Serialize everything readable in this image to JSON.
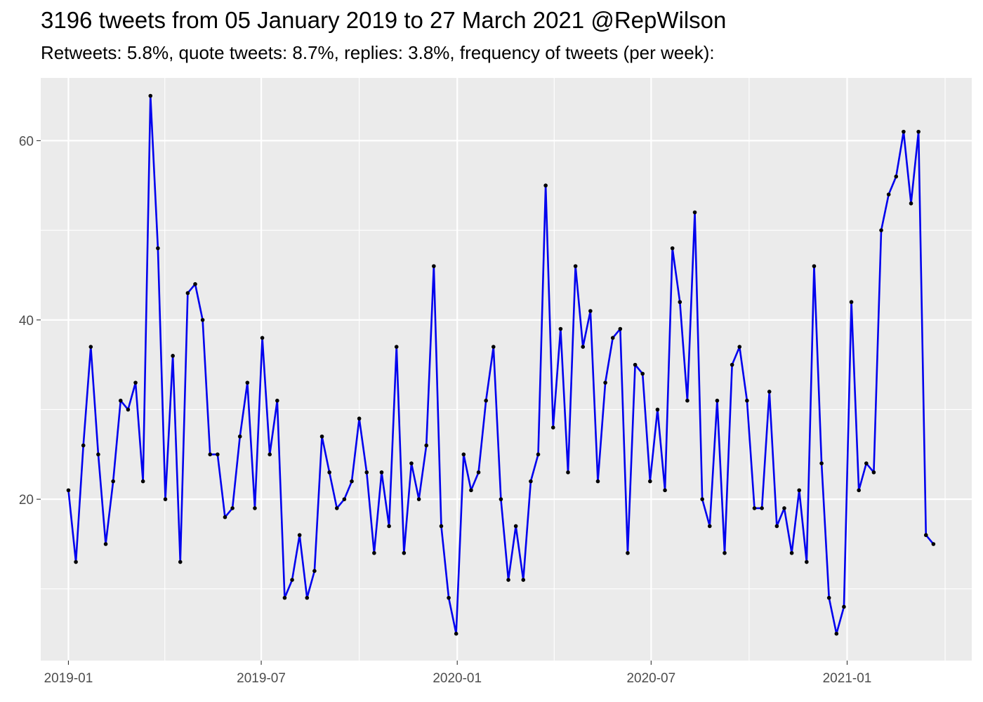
{
  "chart_data": {
    "type": "line",
    "title": "3196 tweets from 05 January 2019 to 27 March 2021 @RepWilson",
    "subtitle": "Retweets: 5.8%, quote tweets: 8.7%, replies: 3.8%, frequency of tweets (per week):",
    "xlabel": "",
    "ylabel": "",
    "x_ticks": [
      {
        "label": "2019-01",
        "date": "2019-01-01"
      },
      {
        "label": "2019-07",
        "date": "2019-07-01"
      },
      {
        "label": "2020-01",
        "date": "2020-01-01"
      },
      {
        "label": "2020-07",
        "date": "2020-07-01"
      },
      {
        "label": "2021-01",
        "date": "2021-01-01"
      }
    ],
    "y_ticks": [
      20,
      40,
      60
    ],
    "xlim": [
      "2018-12-06",
      "2021-04-28"
    ],
    "ylim": [
      2,
      67
    ],
    "grid": true,
    "line_color": "#0000ee",
    "point_color": "#000000",
    "panel_color": "#ebebeb",
    "series": [
      {
        "x": [
          "2019-01-01",
          "2019-01-08",
          "2019-01-15",
          "2019-01-22",
          "2019-01-29",
          "2019-02-05",
          "2019-02-12",
          "2019-02-19",
          "2019-02-26",
          "2019-03-05",
          "2019-03-12",
          "2019-03-19",
          "2019-03-26",
          "2019-04-02",
          "2019-04-09",
          "2019-04-16",
          "2019-04-23",
          "2019-04-30",
          "2019-05-07",
          "2019-05-14",
          "2019-05-21",
          "2019-05-28",
          "2019-06-04",
          "2019-06-11",
          "2019-06-18",
          "2019-06-25",
          "2019-07-02",
          "2019-07-09",
          "2019-07-16",
          "2019-07-23",
          "2019-07-30",
          "2019-08-06",
          "2019-08-13",
          "2019-08-20",
          "2019-08-27",
          "2019-09-03",
          "2019-09-10",
          "2019-09-17",
          "2019-09-24",
          "2019-10-01",
          "2019-10-08",
          "2019-10-15",
          "2019-10-22",
          "2019-10-29",
          "2019-11-05",
          "2019-11-12",
          "2019-11-19",
          "2019-11-26",
          "2019-12-03",
          "2019-12-10",
          "2019-12-17",
          "2019-12-24",
          "2019-12-31",
          "2020-01-07",
          "2020-01-14",
          "2020-01-21",
          "2020-01-28",
          "2020-02-04",
          "2020-02-11",
          "2020-02-18",
          "2020-02-25",
          "2020-03-03",
          "2020-03-10",
          "2020-03-17",
          "2020-03-24",
          "2020-03-31",
          "2020-04-07",
          "2020-04-14",
          "2020-04-21",
          "2020-04-28",
          "2020-05-05",
          "2020-05-12",
          "2020-05-19",
          "2020-05-26",
          "2020-06-02",
          "2020-06-09",
          "2020-06-16",
          "2020-06-23",
          "2020-06-30",
          "2020-07-07",
          "2020-07-14",
          "2020-07-21",
          "2020-07-28",
          "2020-08-04",
          "2020-08-11",
          "2020-08-18",
          "2020-08-25",
          "2020-09-01",
          "2020-09-08",
          "2020-09-15",
          "2020-09-22",
          "2020-09-29",
          "2020-10-06",
          "2020-10-13",
          "2020-10-20",
          "2020-10-27",
          "2020-11-03",
          "2020-11-10",
          "2020-11-17",
          "2020-11-24",
          "2020-12-01",
          "2020-12-08",
          "2020-12-15",
          "2020-12-22",
          "2020-12-29",
          "2021-01-05",
          "2021-01-12",
          "2021-01-19",
          "2021-01-26",
          "2021-02-02",
          "2021-02-09",
          "2021-02-16",
          "2021-02-23",
          "2021-03-02",
          "2021-03-09",
          "2021-03-16",
          "2021-03-23"
        ],
        "y": [
          21,
          13,
          26,
          37,
          25,
          15,
          22,
          31,
          30,
          33,
          22,
          65,
          48,
          20,
          36,
          13,
          43,
          44,
          40,
          25,
          25,
          18,
          19,
          27,
          33,
          19,
          38,
          25,
          31,
          9,
          11,
          16,
          9,
          12,
          27,
          23,
          19,
          20,
          22,
          29,
          23,
          14,
          23,
          17,
          37,
          14,
          24,
          20,
          26,
          46,
          17,
          9,
          5,
          25,
          21,
          23,
          31,
          37,
          20,
          11,
          17,
          11,
          22,
          25,
          55,
          28,
          39,
          23,
          46,
          37,
          41,
          22,
          33,
          38,
          39,
          14,
          35,
          34,
          22,
          30,
          21,
          48,
          42,
          31,
          52,
          20,
          17,
          31,
          14,
          35,
          37,
          31,
          19,
          19,
          32,
          17,
          19,
          14,
          21,
          13,
          46,
          24,
          9,
          5,
          8,
          42,
          21,
          24,
          23,
          50,
          54,
          56,
          61,
          53,
          61,
          16,
          15
        ]
      }
    ]
  }
}
